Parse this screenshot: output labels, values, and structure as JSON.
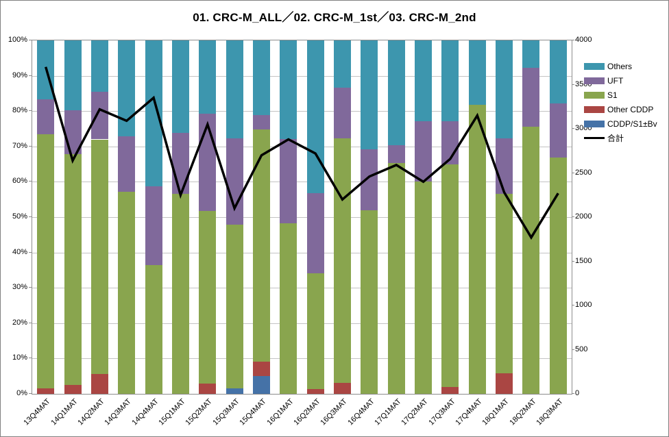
{
  "title": "01. CRC-M_ALL／02. CRC-M_1st／03. CRC-M_2nd",
  "chart_data": {
    "type": "bar",
    "subtype": "100%-stacked-column-with-line",
    "stacked": true,
    "grid": true,
    "legend_position": "right",
    "title": "01. CRC-M_ALL／02. CRC-M_1st／03. CRC-M_2nd",
    "categories": [
      "13Q4MAT",
      "14Q1MAT",
      "14Q2MAT",
      "14Q3MAT",
      "14Q4MAT",
      "15Q1MAT",
      "15Q2MAT",
      "15Q3MAT",
      "15Q4MAT",
      "16Q1MAT",
      "16Q2MAT",
      "16Q3MAT",
      "16Q4MAT",
      "17Q1MAT",
      "17Q2MAT",
      "17Q3MAT",
      "17Q4MAT",
      "18Q1MAT",
      "18Q2MAT",
      "18Q3MAT"
    ],
    "series": [
      {
        "name": "CDDP/S1±Bv",
        "color": "#4572A7",
        "values": [
          0,
          0,
          0,
          0,
          0,
          0,
          0,
          1.5,
          5.1,
          0,
          0,
          0,
          0,
          0,
          0,
          0,
          0,
          0,
          0,
          0
        ]
      },
      {
        "name": "Other CDDP",
        "color": "#AA4643",
        "values": [
          1.5,
          2.5,
          5.6,
          0,
          0,
          0,
          3.0,
          0,
          4.0,
          0,
          1.4,
          3.2,
          0,
          0,
          0,
          2.0,
          0,
          5.8,
          0,
          0
        ]
      },
      {
        "name": "S1",
        "color": "#89A54E",
        "values": [
          72.0,
          65.4,
          66.4,
          57.2,
          36.5,
          56.5,
          48.7,
          46.4,
          65.8,
          48.2,
          32.8,
          69.1,
          51.9,
          65.3,
          60.0,
          62.9,
          81.8,
          50.7,
          75.5,
          66.8
        ]
      },
      {
        "name": "UFT",
        "color": "#80699B",
        "values": [
          9.8,
          12.4,
          13.4,
          15.6,
          22.2,
          17.3,
          27.5,
          24.3,
          3.9,
          23.9,
          22.6,
          14.4,
          17.3,
          5.0,
          17.2,
          12.2,
          0,
          15.8,
          16.8,
          15.4
        ]
      },
      {
        "name": "Others",
        "color": "#3D96AE",
        "values": [
          16.7,
          19.7,
          14.6,
          27.2,
          41.3,
          26.2,
          20.8,
          27.8,
          21.2,
          27.9,
          43.2,
          13.3,
          30.8,
          29.7,
          22.8,
          22.9,
          18.2,
          27.7,
          7.7,
          17.8
        ]
      }
    ],
    "line_series": {
      "name": "合計",
      "color": "#000000",
      "axis": "right",
      "values": [
        3700,
        2640,
        3220,
        3090,
        3350,
        2250,
        3050,
        2100,
        2700,
        2880,
        2720,
        2200,
        2460,
        2590,
        2400,
        2660,
        3150,
        2280,
        1770,
        2270
      ]
    },
    "left_axis": {
      "min": 0,
      "max": 100,
      "tick_labels": [
        "0%",
        "10%",
        "20%",
        "30%",
        "40%",
        "50%",
        "60%",
        "70%",
        "80%",
        "90%",
        "100%"
      ]
    },
    "right_axis": {
      "min": 0,
      "max": 4000,
      "tick_labels": [
        "0",
        "500",
        "1000",
        "1500",
        "2000",
        "2500",
        "3000",
        "3500",
        "4000"
      ]
    },
    "legend": [
      {
        "label": "Others",
        "color": "#3D96AE",
        "marker": "rect"
      },
      {
        "label": "UFT",
        "color": "#80699B",
        "marker": "rect"
      },
      {
        "label": "S1",
        "color": "#89A54E",
        "marker": "rect"
      },
      {
        "label": "Other CDDP",
        "color": "#AA4643",
        "marker": "rect"
      },
      {
        "label": "CDDP/S1±Bv",
        "color": "#4572A7",
        "marker": "rect"
      },
      {
        "label": "合計",
        "color": "#000000",
        "marker": "line"
      }
    ]
  }
}
